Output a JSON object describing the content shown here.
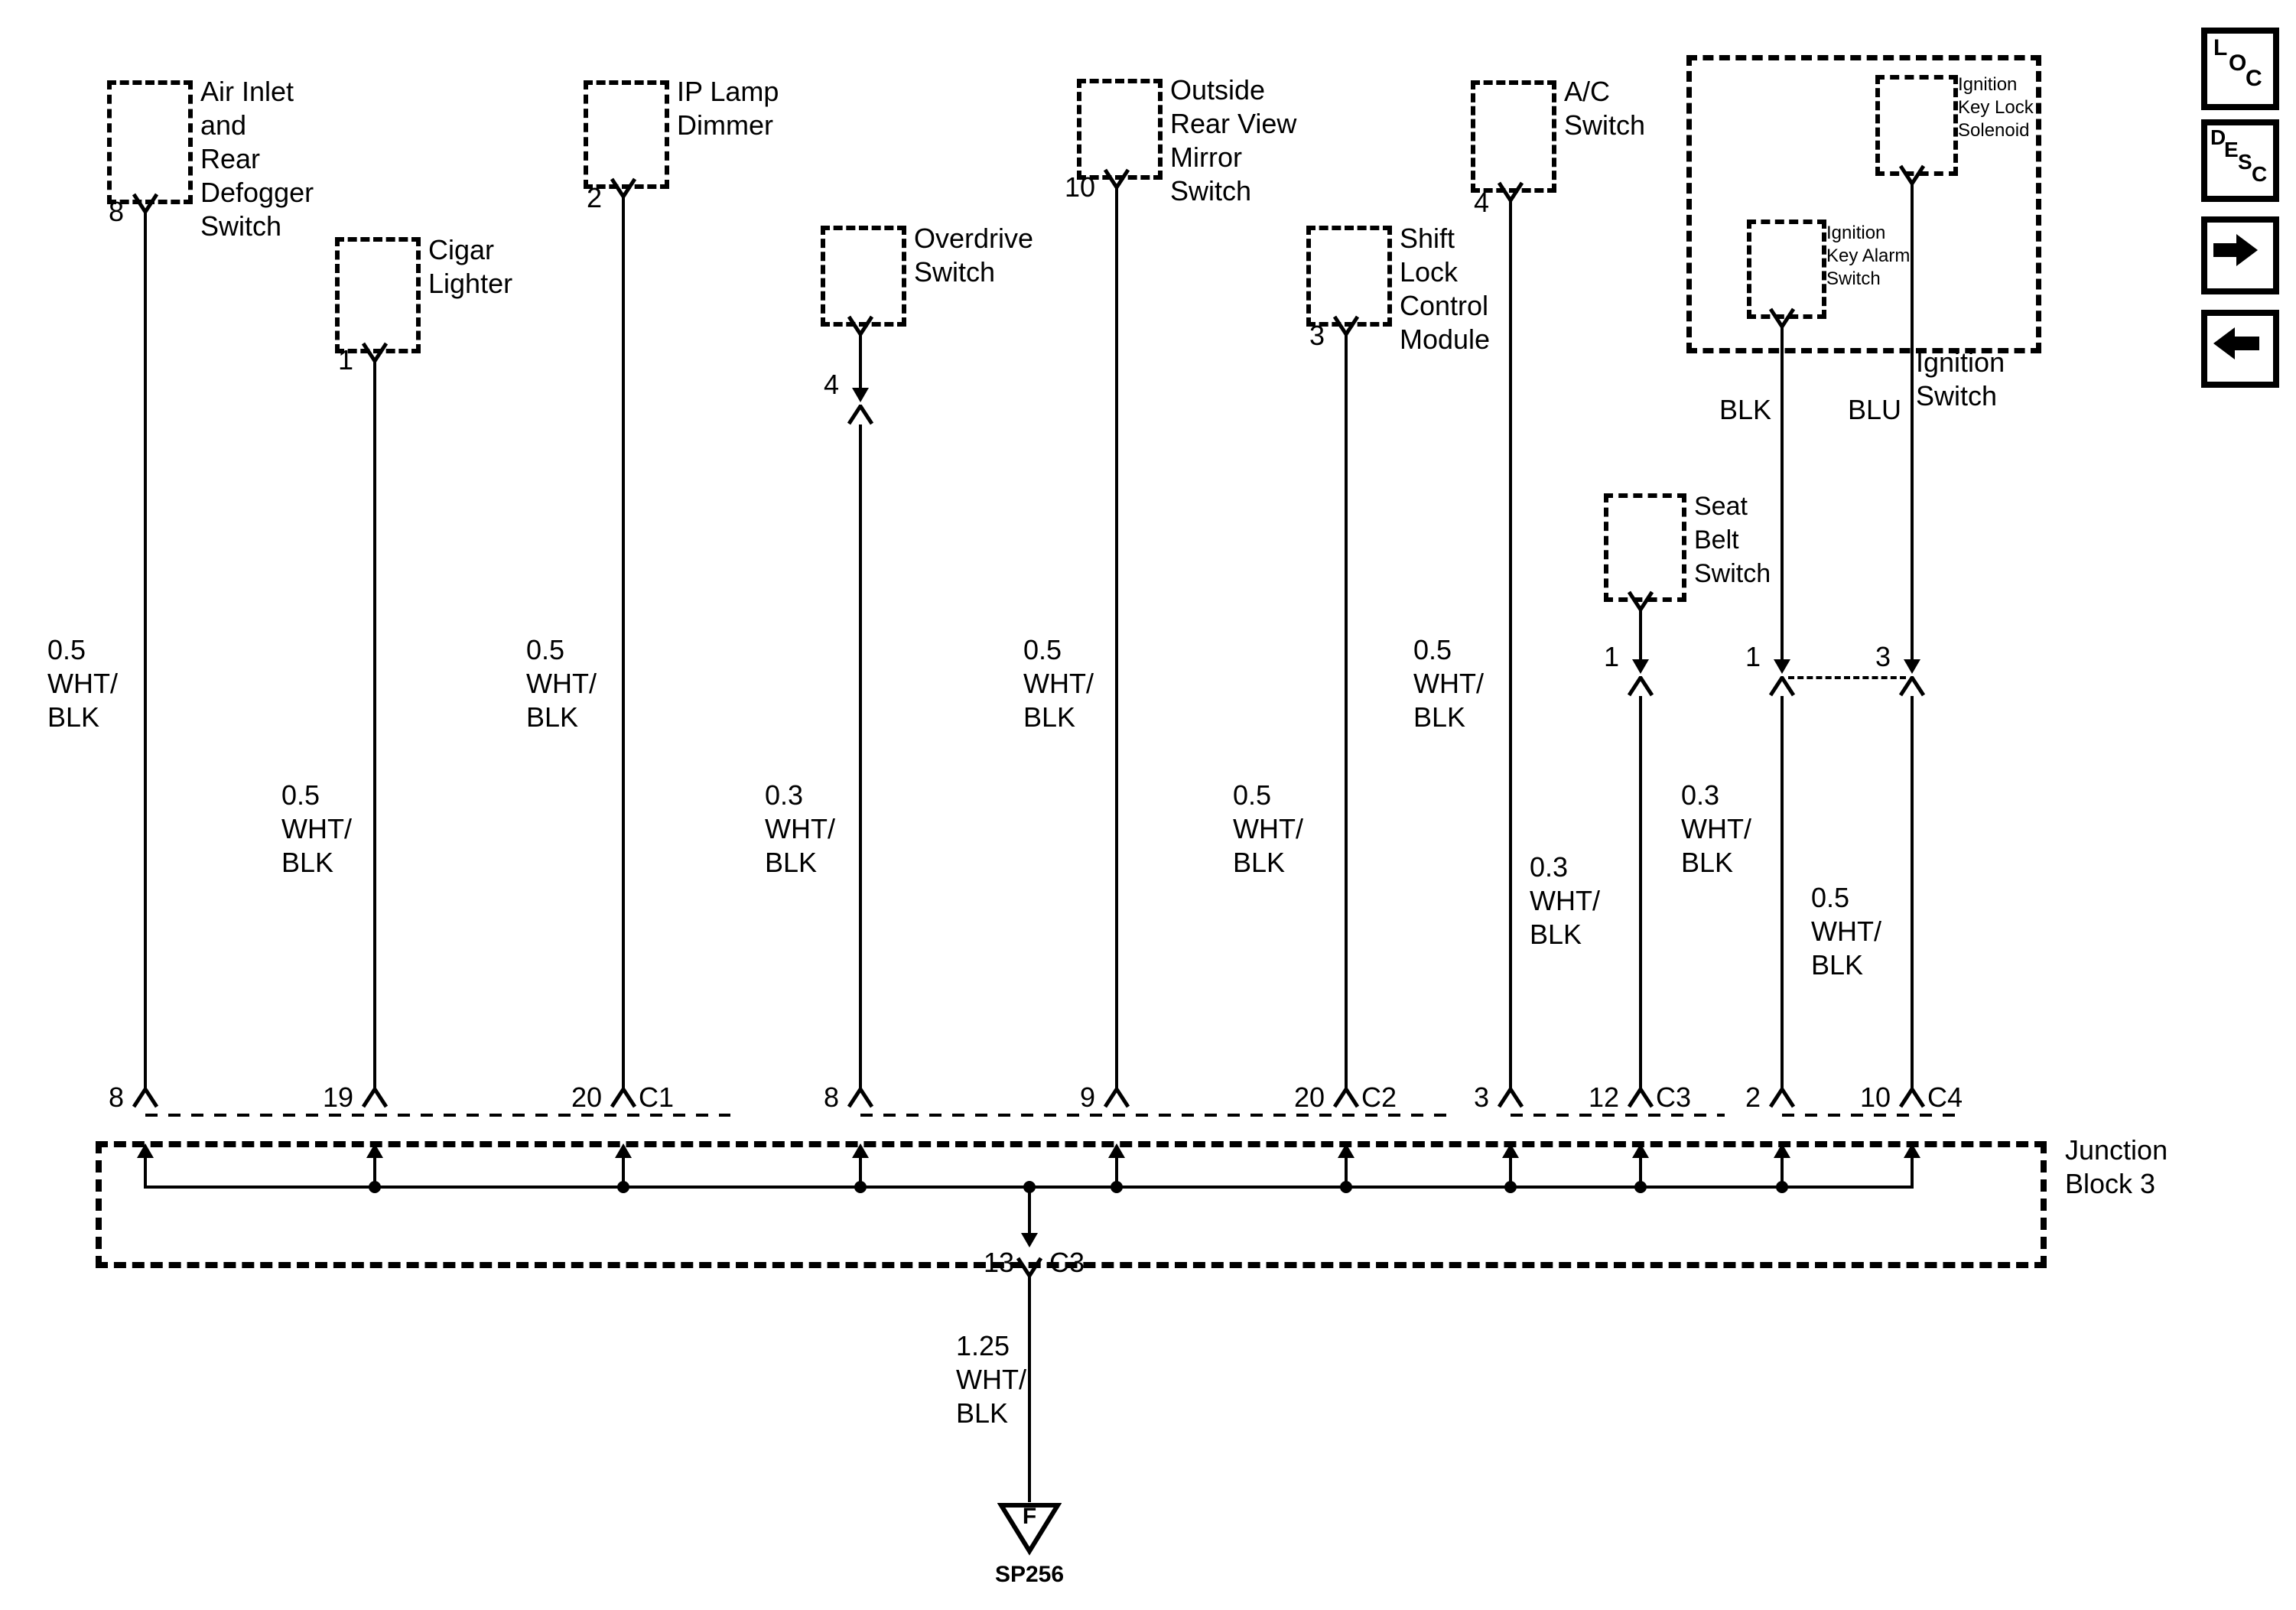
{
  "components": [
    {
      "id": "air-inlet-rear-defogger-switch",
      "label": "Air Inlet\nand\nRear\nDefogger\nSwitch"
    },
    {
      "id": "cigar-lighter",
      "label": "Cigar\nLighter"
    },
    {
      "id": "ip-lamp-dimmer",
      "label": "IP Lamp\nDimmer"
    },
    {
      "id": "overdrive-switch",
      "label": "Overdrive\nSwitch"
    },
    {
      "id": "outside-rear-view-mirror-switch",
      "label": "Outside\nRear View\nMirror\nSwitch"
    },
    {
      "id": "shift-lock-control-module",
      "label": "Shift\nLock\nControl\nModule"
    },
    {
      "id": "ac-switch",
      "label": "A/C\nSwitch"
    },
    {
      "id": "seat-belt-switch",
      "label": "Seat\nBelt\nSwitch"
    }
  ],
  "ignition": {
    "solenoid_label": "Ignition\nKey Lock\nSolenoid",
    "alarm_label": "Ignition\nKey Alarm\nSwitch",
    "caption": "Ignition\nSwitch",
    "blk_label": "BLK",
    "blu_label": "BLU"
  },
  "wires": [
    {
      "pin": "8",
      "gauge": "0.5\nWHT/\nBLK",
      "jb_pin": "8"
    },
    {
      "pin": "1",
      "gauge": "0.5\nWHT/\nBLK",
      "jb_pin": "19"
    },
    {
      "pin": "2",
      "gauge": "0.5\nWHT/\nBLK",
      "jb_pin": "20",
      "jb_connector": "C1"
    },
    {
      "pin": "4",
      "gauge": "0.3\nWHT/\nBLK",
      "jb_pin": "8"
    },
    {
      "pin": "10",
      "gauge": "0.5\nWHT/\nBLK",
      "jb_pin": "9"
    },
    {
      "pin": "3",
      "gauge": "0.5\nWHT/\nBLK",
      "jb_pin": "20",
      "jb_connector": "C2"
    },
    {
      "pin": "4",
      "gauge": "0.5\nWHT/\nBLK",
      "jb_pin": "3"
    },
    {
      "pin": "1",
      "gauge": "0.3\nWHT/\nBLK",
      "jb_pin": "12",
      "jb_connector": "C3"
    },
    {
      "pin": "1",
      "gauge": "0.3\nWHT/\nBLK",
      "jb_pin": "2",
      "color_code": "BLK"
    },
    {
      "pin": "3",
      "gauge": "0.5\nWHT/\nBLK",
      "jb_pin": "10",
      "jb_connector": "C4",
      "color_code": "BLU"
    }
  ],
  "junction": {
    "label": "Junction\nBlock 3",
    "output_pin": "13",
    "output_connector": "C3",
    "output_gauge": "1.25\nWHT/\nBLK",
    "fuse_letter": "F",
    "splice_id": "SP256"
  },
  "nav": {
    "loc": [
      "L",
      "O",
      "C"
    ],
    "desc": [
      "D",
      "E",
      "S",
      "C"
    ]
  },
  "colors": {
    "ink": "#000000",
    "paper": "#ffffff"
  }
}
